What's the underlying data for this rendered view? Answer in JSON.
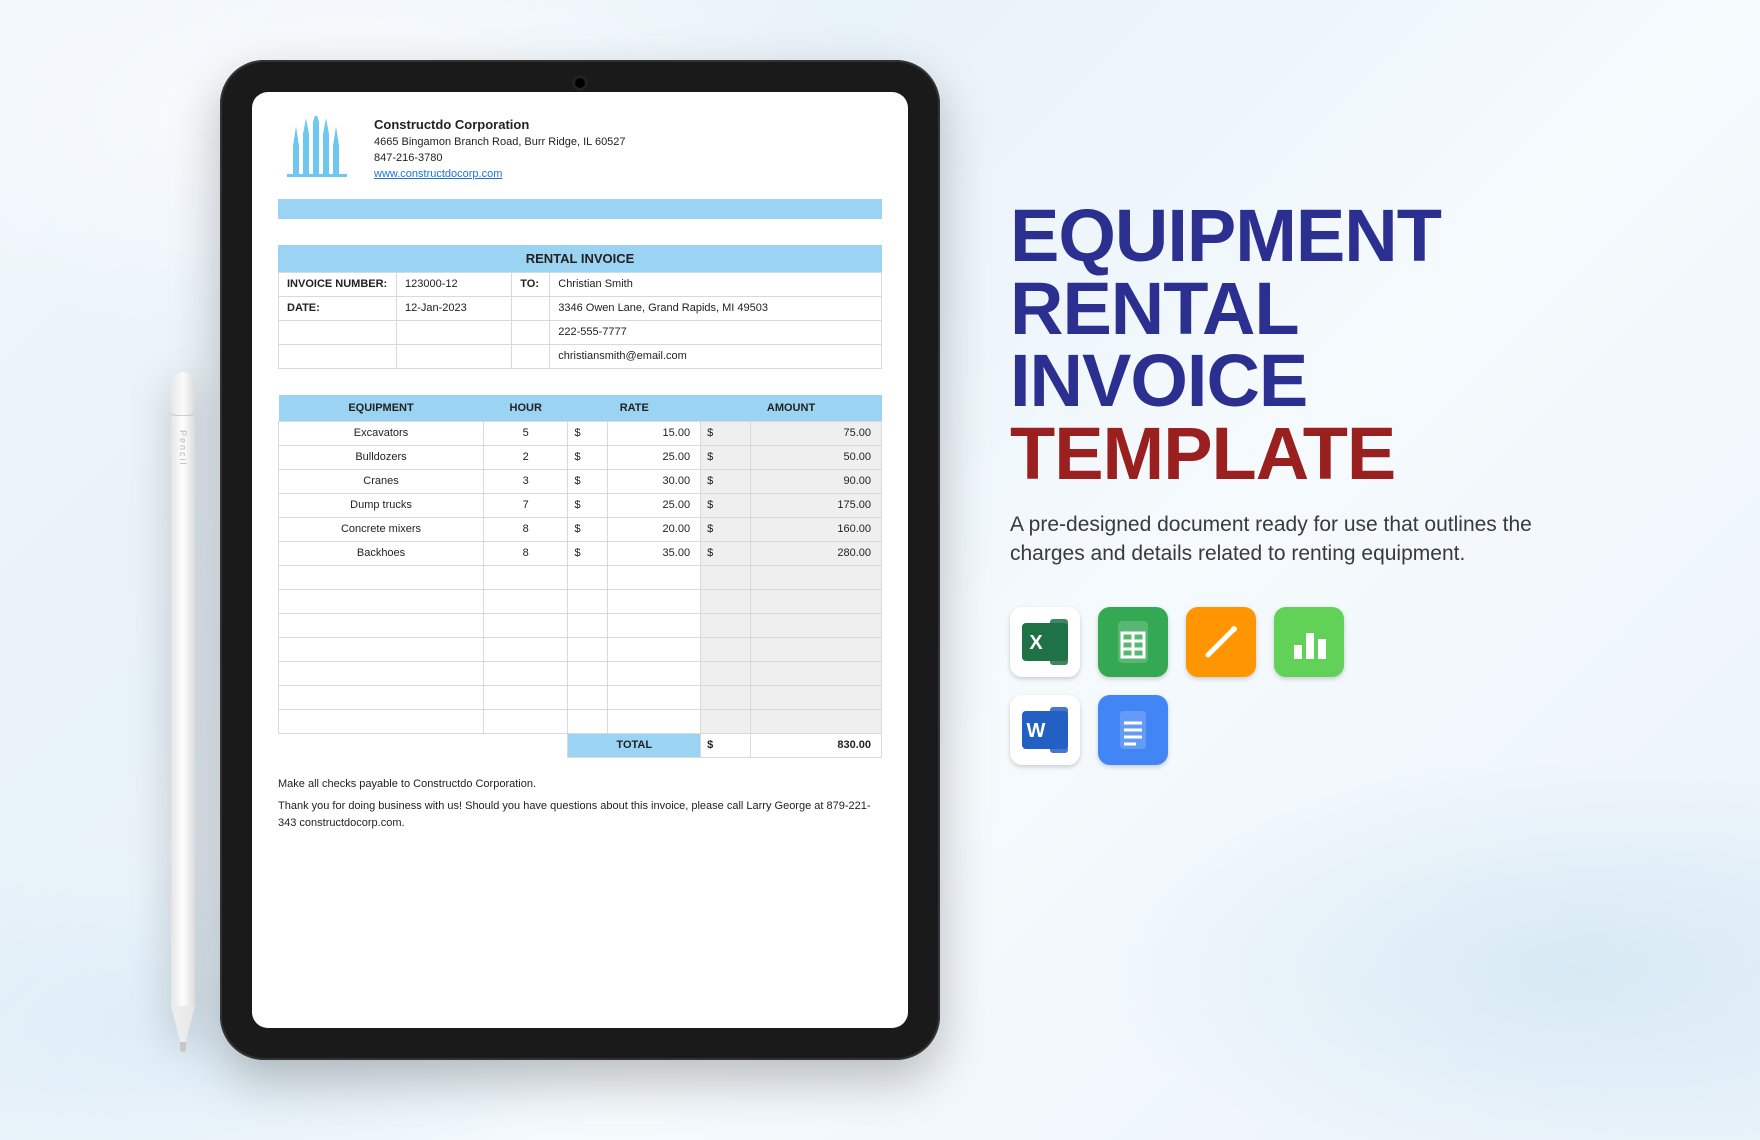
{
  "pencil": {
    "brand": "Pencil"
  },
  "company": {
    "name": "Constructdo Corporation",
    "address": "4665  Bingamon Branch Road, Burr Ridge, IL 60527",
    "phone": "847-216-3780",
    "website": "www.constructdocorp.com",
    "logo_color": "#6ec7ef"
  },
  "invoice": {
    "section_title": "RENTAL INVOICE",
    "labels": {
      "number": "INVOICE NUMBER:",
      "date": "DATE:",
      "to": "TO:"
    },
    "number": "123000-12",
    "date": "12-Jan-2023",
    "bill_to": {
      "name": "Christian Smith",
      "address": "3346 Owen Lane, Grand Rapids, MI 49503",
      "phone": "222-555-7777",
      "email": "christiansmith@email.com"
    }
  },
  "table": {
    "headers": {
      "equipment": "EQUIPMENT",
      "hour": "HOUR",
      "rate": "RATE",
      "amount": "AMOUNT"
    },
    "currency": "$",
    "rows": [
      {
        "equipment": "Excavators",
        "hour": "5",
        "rate": "15.00",
        "amount": "75.00"
      },
      {
        "equipment": "Bulldozers",
        "hour": "2",
        "rate": "25.00",
        "amount": "50.00"
      },
      {
        "equipment": "Cranes",
        "hour": "3",
        "rate": "30.00",
        "amount": "90.00"
      },
      {
        "equipment": "Dump trucks",
        "hour": "7",
        "rate": "25.00",
        "amount": "175.00"
      },
      {
        "equipment": "Concrete mixers",
        "hour": "8",
        "rate": "20.00",
        "amount": "160.00"
      },
      {
        "equipment": "Backhoes",
        "hour": "8",
        "rate": "35.00",
        "amount": "280.00"
      }
    ],
    "empty_rows": 7,
    "total_label": "TOTAL",
    "total": "830.00"
  },
  "footer": {
    "line1": "Make all checks payable to Constructdo Corporation.",
    "line2": "Thank you for doing business with us! Should you have questions about this invoice, please call Larry George at 879-221-343 constructdocorp.com."
  },
  "promo": {
    "line1": "EQUIPMENT",
    "line2": "RENTAL",
    "line3": "INVOICE",
    "line4": "TEMPLATE",
    "desc": "A pre-designed document ready for use that outlines the charges and details related to renting equipment."
  },
  "apps": {
    "items": [
      {
        "name": "excel-icon",
        "bg": "#ffffff",
        "fill": "#1e7245"
      },
      {
        "name": "sheets-icon",
        "bg": "#34a853",
        "fill": "#ffffff"
      },
      {
        "name": "pages-icon",
        "bg": "#ff9500",
        "fill": "#ffffff"
      },
      {
        "name": "numbers-icon",
        "bg": "#61d158",
        "fill": "#ffffff"
      },
      {
        "name": "word-icon",
        "bg": "#ffffff",
        "fill": "#2260c3"
      },
      {
        "name": "docs-icon",
        "bg": "#4285f4",
        "fill": "#ffffff"
      }
    ]
  },
  "colors": {
    "accent_blue": "#9bd3f2",
    "grid": "#d9d9d9",
    "amount_bg": "#efefef",
    "title_navy": "#2b2f8f",
    "title_red": "#9a1f1f"
  }
}
